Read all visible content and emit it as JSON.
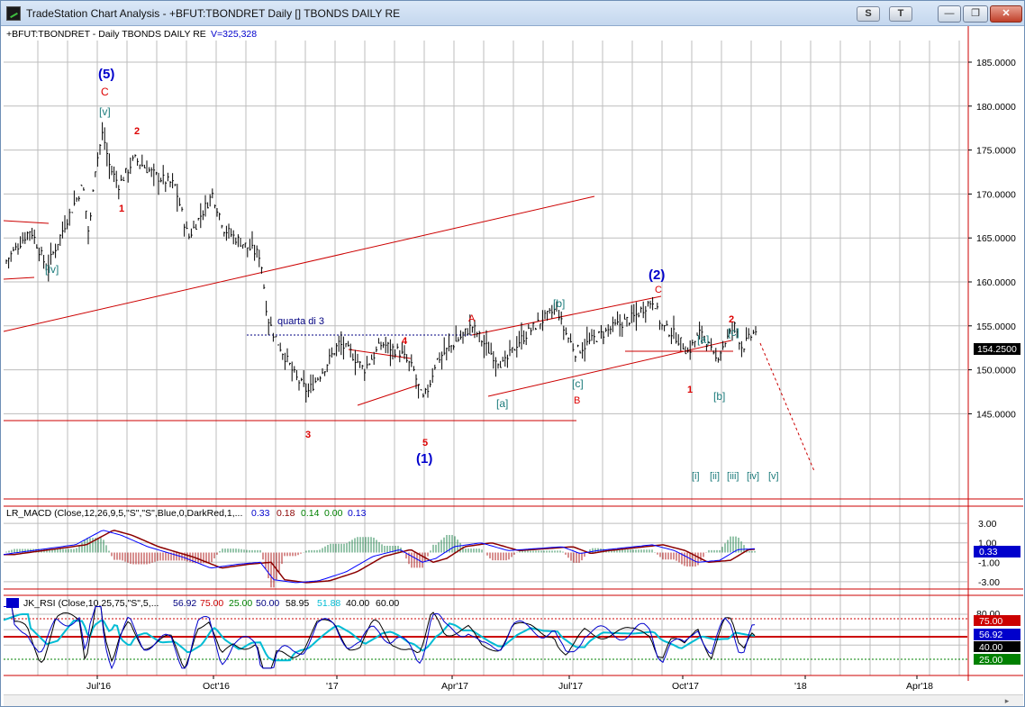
{
  "window": {
    "title": "TradeStation Chart Analysis - +BFUT:TBONDRET Daily [] TBONDS DAILY RE",
    "tools": [
      "S",
      "T"
    ],
    "controls": [
      "minimize",
      "restore",
      "close"
    ]
  },
  "price_pane": {
    "header": "+BFUT:TBONDRET - Daily  TBONDS DAILY RE  ",
    "volume": "V=325,328",
    "last_price": "154.2500",
    "y_ticks": [
      "185.0000",
      "180.0000",
      "175.0000",
      "170.0000",
      "165.0000",
      "160.0000",
      "155.0000",
      "150.0000",
      "145.0000"
    ]
  },
  "macd_pane": {
    "header": "LR_MACD (Close,12,26,9,5,\"S\",\"S\",Blue,0,DarkRed,1,...",
    "values": [
      "0.33",
      "0.18",
      "0.14",
      "0.00",
      "0.13"
    ],
    "y_ticks": [
      "3.00",
      "1.00",
      "-1.00",
      "-3.00"
    ],
    "badge": "0.33"
  },
  "rsi_pane": {
    "header": "JK_RSI (Close,10,25,75,\"S\",5,...",
    "values": [
      "56.92",
      "75.00",
      "25.00",
      "50.00",
      "58.95",
      "51.88",
      "40.00",
      "60.00"
    ],
    "y_ticks": [
      "80.00"
    ],
    "badges": [
      "75.00",
      "56.92",
      "40.00",
      "25.00"
    ]
  },
  "x_axis": {
    "labels": [
      "Jul'16",
      "Oct'16",
      "'17",
      "Apr'17",
      "Jul'17",
      "Oct'17",
      "'18",
      "Apr'18"
    ]
  },
  "wave_labels": {
    "blue": [
      "(5)",
      "(1)",
      "(2)"
    ],
    "red": [
      "C",
      "2",
      "1",
      "4",
      "3",
      "5",
      "A",
      "B",
      "C",
      "2",
      "1"
    ],
    "teal": [
      "[v]",
      "[iv]",
      "[b]",
      "[a]",
      "[c]",
      "[a]",
      "[c]",
      "[b]",
      "[i]",
      "[ii]",
      "[iii]",
      "[iv]",
      "[v]"
    ],
    "annotation": "quarta di 3"
  },
  "colors": {
    "price_bars": "#000000",
    "grid": "#b8b8b8",
    "channel": "#cc0000",
    "blue_label": "#0000cc",
    "red_label": "#dd0000",
    "teal_label": "#1a7a7a",
    "macd_line": "#0000ff",
    "macd_signal": "#8b0000",
    "rsi_line": "#000000",
    "rsi_avg": "#00bcd4"
  }
}
